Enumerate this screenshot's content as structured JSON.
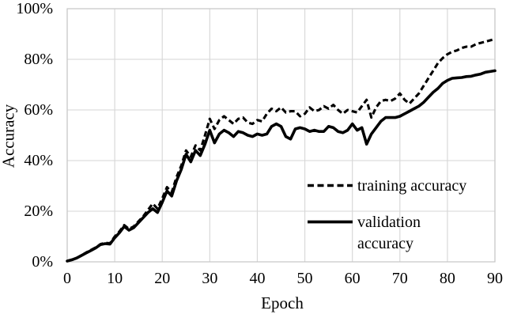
{
  "colors": {
    "background": "#ffffff",
    "text": "#000000",
    "series": "#000000",
    "grid": "#d6d6d6",
    "plot_border": "#c6c6c6"
  },
  "chart_data": {
    "type": "line",
    "title": "",
    "xlabel": "Epoch",
    "ylabel": "Accuracy",
    "xlim": [
      0,
      90
    ],
    "ylim": [
      0,
      100
    ],
    "grid": true,
    "legend_position": "inside-center-right",
    "x_ticks": [
      {
        "value": 0,
        "label": "0"
      },
      {
        "value": 10,
        "label": "10"
      },
      {
        "value": 20,
        "label": "20"
      },
      {
        "value": 30,
        "label": "30"
      },
      {
        "value": 40,
        "label": "40"
      },
      {
        "value": 50,
        "label": "50"
      },
      {
        "value": 60,
        "label": "60"
      },
      {
        "value": 70,
        "label": "70"
      },
      {
        "value": 80,
        "label": "80"
      },
      {
        "value": 90,
        "label": "90"
      }
    ],
    "y_ticks": [
      {
        "value": 0,
        "label": "0%"
      },
      {
        "value": 20,
        "label": "20%"
      },
      {
        "value": 40,
        "label": "40%"
      },
      {
        "value": 60,
        "label": "60%"
      },
      {
        "value": 80,
        "label": "80%"
      },
      {
        "value": 100,
        "label": "100%"
      }
    ],
    "x": [
      0,
      1,
      2,
      3,
      4,
      5,
      6,
      7,
      8,
      9,
      10,
      11,
      12,
      13,
      14,
      15,
      16,
      17,
      18,
      19,
      20,
      21,
      22,
      23,
      24,
      25,
      26,
      27,
      28,
      29,
      30,
      31,
      32,
      33,
      34,
      35,
      36,
      37,
      38,
      39,
      40,
      41,
      42,
      43,
      44,
      45,
      46,
      47,
      48,
      49,
      50,
      51,
      52,
      53,
      54,
      55,
      56,
      57,
      58,
      59,
      60,
      61,
      62,
      63,
      64,
      65,
      66,
      67,
      68,
      69,
      70,
      71,
      72,
      73,
      74,
      75,
      76,
      77,
      78,
      79,
      80,
      81,
      82,
      83,
      84,
      85,
      86,
      87,
      88,
      89,
      90
    ],
    "series": [
      {
        "name": "training accuracy",
        "style": "dashed",
        "unit": "%",
        "values": [
          0.3,
          0.8,
          1.5,
          2.5,
          3.7,
          4.7,
          5.7,
          7,
          7.5,
          7.3,
          10,
          12,
          14.5,
          13,
          14,
          16,
          18,
          20.5,
          23,
          21,
          25,
          29.5,
          27.5,
          33.5,
          38,
          44,
          41.5,
          46,
          44,
          50,
          56.5,
          52.5,
          56,
          57.5,
          56,
          54.5,
          56.5,
          57,
          55,
          54.5,
          56,
          55.5,
          58.5,
          60.5,
          59.5,
          61,
          59,
          59.5,
          59.5,
          57.5,
          58.5,
          61,
          59.5,
          60,
          61.5,
          60.5,
          62,
          60,
          58.5,
          60,
          59.5,
          59,
          61.5,
          64,
          57,
          61,
          63.5,
          64,
          63.5,
          64.5,
          66.5,
          64,
          62.5,
          64.5,
          66.5,
          69.5,
          72.5,
          75.5,
          78.5,
          80.5,
          82,
          83,
          83.5,
          84.5,
          85,
          85,
          86,
          86.5,
          87,
          87.5,
          88
        ]
      },
      {
        "name": "validation accuracy",
        "style": "solid",
        "unit": "%",
        "values": [
          0.3,
          0.8,
          1.5,
          2.5,
          3.5,
          4.5,
          5.5,
          6.8,
          7.2,
          7,
          9.5,
          11.5,
          14,
          12.5,
          13.5,
          15.5,
          17.5,
          19.5,
          21,
          19.5,
          23.5,
          28,
          26,
          32,
          36.5,
          42.5,
          39.5,
          44,
          42,
          46.5,
          52,
          47,
          50.5,
          52,
          51,
          49.5,
          51.5,
          51,
          50,
          49.5,
          50.5,
          50,
          50.5,
          53.5,
          54.5,
          53.5,
          49.5,
          48.5,
          52.5,
          53,
          52.5,
          51.5,
          52,
          51.5,
          51.5,
          53.5,
          53,
          51.5,
          51,
          52,
          54.5,
          52,
          53,
          46.5,
          50.5,
          53,
          55.5,
          57,
          57,
          57,
          57.5,
          58.5,
          59.5,
          60.5,
          61.5,
          63,
          65,
          67,
          68.5,
          70.5,
          71.7,
          72.5,
          72.7,
          72.8,
          73.2,
          73.3,
          73.8,
          74.2,
          74.9,
          75.2,
          75.5
        ]
      }
    ]
  }
}
